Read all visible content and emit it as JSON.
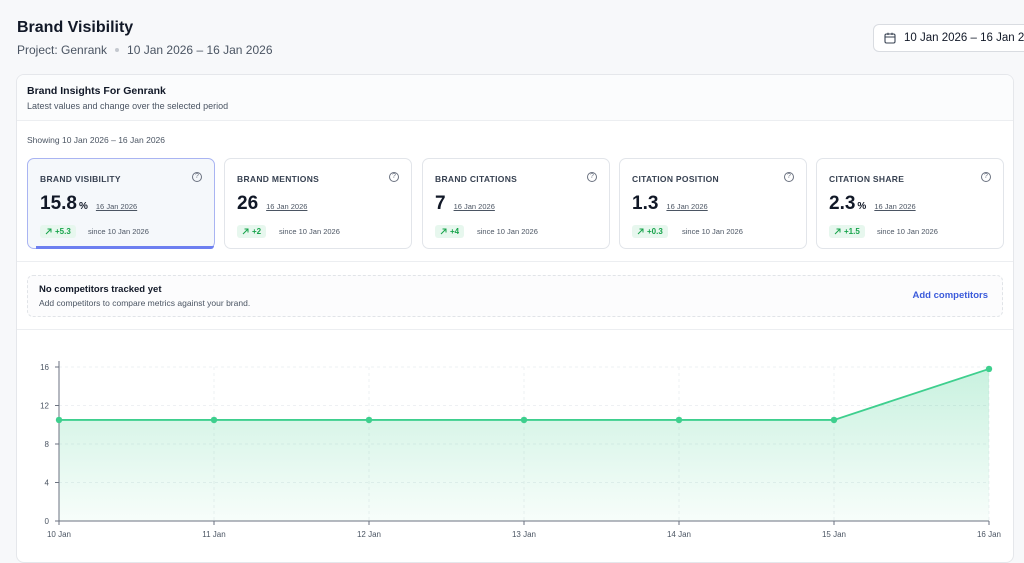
{
  "header": {
    "title": "Brand Visibility",
    "project": "Project: Genrank",
    "date_range": "10 Jan 2026 – 16 Jan 2026"
  },
  "date_picker": {
    "label": "10 Jan 2026 – 16 Jan 20",
    "icon": "calendar-icon"
  },
  "insights": {
    "title": "Brand Insights For Genrank",
    "description": "Latest values and change over the selected period",
    "showing": "Showing 10 Jan 2026 – 16 Jan 2026"
  },
  "metrics": [
    {
      "label": "BRAND VISIBILITY",
      "value": "15.8",
      "unit": "%",
      "date": "16 Jan 2026",
      "delta": "+5.3",
      "since": "since 10 Jan 2026",
      "active": true
    },
    {
      "label": "BRAND MENTIONS",
      "value": "26",
      "unit": "",
      "date": "16 Jan 2026",
      "delta": "+2",
      "since": "since 10 Jan 2026",
      "active": false
    },
    {
      "label": "BRAND CITATIONS",
      "value": "7",
      "unit": "",
      "date": "16 Jan 2026",
      "delta": "+4",
      "since": "since 10 Jan 2026",
      "active": false
    },
    {
      "label": "CITATION POSITION",
      "value": "1.3",
      "unit": "",
      "date": "16 Jan 2026",
      "delta": "+0.3",
      "since": "since 10 Jan 2026",
      "active": false
    },
    {
      "label": "CITATION SHARE",
      "value": "2.3",
      "unit": "%",
      "date": "16 Jan 2026",
      "delta": "+1.5",
      "since": "since 10 Jan 2026",
      "active": false
    }
  ],
  "competitors": {
    "title": "No competitors tracked yet",
    "description": "Add competitors to compare metrics against your brand.",
    "action": "Add competitors"
  },
  "colors": {
    "accent": "#6d7ff0",
    "line": "#3ecf8e",
    "positive": "#16a34a",
    "link": "#3b5bdb"
  },
  "chart_data": {
    "type": "area",
    "x": [
      "10 Jan",
      "11 Jan",
      "12 Jan",
      "13 Jan",
      "14 Jan",
      "15 Jan",
      "16 Jan"
    ],
    "values": [
      10.5,
      10.5,
      10.5,
      10.5,
      10.5,
      10.5,
      15.8
    ],
    "yticks": [
      0,
      4,
      8,
      12,
      16
    ],
    "ylim": [
      0,
      16
    ],
    "grid": true,
    "legend": "none"
  }
}
